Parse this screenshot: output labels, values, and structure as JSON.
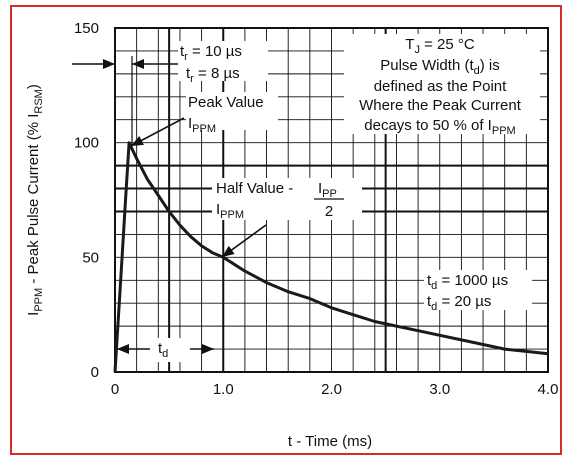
{
  "colors": {
    "frame": "#d62b2b",
    "curve": "#1a1a1a",
    "grid": "#111111",
    "background": "#ffffff"
  },
  "chart_data": {
    "type": "line",
    "xlabel": "t - Time (ms)",
    "ylabel": {
      "parts": [
        {
          "text": "I",
          "style": "normal"
        },
        {
          "text": "PPM",
          "style": "sub"
        },
        {
          "text": " - Peak Pulse Current (% I",
          "style": "normal"
        },
        {
          "text": "RSM",
          "style": "sub"
        },
        {
          "text": ")",
          "style": "normal"
        }
      ]
    },
    "xlim": [
      0,
      4.0
    ],
    "ylim": [
      0,
      150
    ],
    "x_ticks": [
      {
        "value": 0,
        "label": "0"
      },
      {
        "value": 1.0,
        "label": "1.0"
      },
      {
        "value": 2.0,
        "label": "2.0"
      },
      {
        "value": 3.0,
        "label": "3.0"
      },
      {
        "value": 4.0,
        "label": "4.0"
      }
    ],
    "y_ticks": [
      {
        "value": 0,
        "label": "0"
      },
      {
        "value": 50,
        "label": "50"
      },
      {
        "value": 100,
        "label": "100"
      },
      {
        "value": 150,
        "label": "150"
      }
    ],
    "grid": true,
    "grid_x_step": 0.2,
    "grid_y_step": 10,
    "heavy_grid_x": [
      0.5,
      1.0,
      2.5
    ],
    "heavy_grid_y": [
      70,
      80,
      90
    ],
    "series": [
      {
        "x": [
          0,
          0.05,
          0.1,
          0.13,
          0.2,
          0.3,
          0.4,
          0.5,
          0.6,
          0.7,
          0.8,
          0.9,
          1.0,
          1.2,
          1.4,
          1.6,
          1.8,
          2.0,
          2.2,
          2.4,
          2.6,
          2.8,
          3.0,
          3.2,
          3.4,
          3.6,
          3.8,
          4.0
        ],
        "y": [
          0,
          38,
          77,
          100,
          93,
          84,
          77,
          70,
          64,
          59,
          55,
          52,
          50,
          44,
          39,
          35,
          32,
          28,
          25,
          22,
          20,
          18,
          16,
          14,
          12,
          10,
          9,
          8
        ]
      }
    ],
    "annotations": {
      "tr_main": {
        "t": "t",
        "sub": "r",
        "rest": " = 10 µs"
      },
      "tr_alt": {
        "t": "t",
        "sub": "r",
        "rest": " = 8 µs"
      },
      "peak_line1": "Peak Value",
      "peak_i": "I",
      "peak_sub": "PPM",
      "tj_t": "T",
      "tj_sub": "J",
      "tj_rest": " = 25 °C",
      "def_line1_a": "Pulse Width (t",
      "def_line1_sub": "d",
      "def_line1_b": ") is",
      "def_line2": "defined as the Point",
      "def_line3": "Where the Peak Current",
      "def_line4_a": "decays to 50 % of I",
      "def_line4_sub": "PPM",
      "half_label": "Half Value -",
      "half_i": "I",
      "half_sub": "PPM",
      "frac_i": "I",
      "frac_sub": "PP",
      "frac_den": "2",
      "td1_t": "t",
      "td1_sub": "d",
      "td1_rest": " = 1000 µs",
      "td2_t": "t",
      "td2_sub": "d",
      "td2_rest": " = 20 µs",
      "td_arrow_t": "t",
      "td_arrow_sub": "d"
    }
  }
}
